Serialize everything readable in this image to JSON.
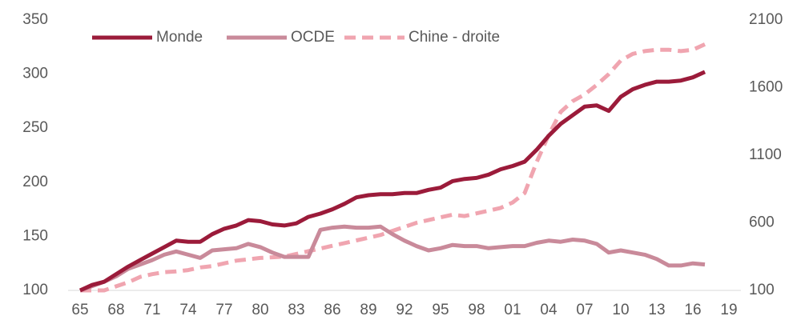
{
  "chart_data": {
    "type": "line",
    "categories": [
      "65",
      null,
      null,
      "68",
      null,
      null,
      "71",
      null,
      null,
      "74",
      null,
      null,
      "77",
      null,
      null,
      "80",
      null,
      null,
      "83",
      null,
      null,
      "86",
      null,
      null,
      "89",
      null,
      null,
      "92",
      null,
      null,
      "95",
      null,
      null,
      "98",
      null,
      null,
      "01",
      null,
      null,
      "04",
      null,
      null,
      "07",
      null,
      null,
      "10",
      null,
      null,
      "13",
      null,
      null,
      "16",
      null,
      null,
      "19"
    ],
    "series": [
      {
        "name": "Monde",
        "color": "#9b1b3a",
        "dashed": false,
        "axis": "y",
        "values": [
          100,
          105,
          108,
          115,
          122,
          128,
          134,
          140,
          146,
          145,
          145,
          152,
          157,
          160,
          165,
          164,
          161,
          160,
          162,
          168,
          171,
          175,
          180,
          186,
          188,
          189,
          189,
          190,
          190,
          193,
          195,
          201,
          203,
          204,
          207,
          212,
          215,
          219,
          230,
          243,
          254,
          262,
          270,
          271,
          266,
          279,
          286,
          290,
          293,
          293,
          294,
          297,
          302,
          null,
          null
        ]
      },
      {
        "name": "OCDE",
        "color": "#c98a9a",
        "dashed": false,
        "axis": "y",
        "values": [
          100,
          104,
          108,
          113,
          120,
          124,
          128,
          133,
          136,
          133,
          130,
          137,
          138,
          139,
          143,
          140,
          135,
          131,
          131,
          131,
          156,
          158,
          159,
          158,
          158,
          159,
          152,
          146,
          141,
          137,
          139,
          142,
          141,
          141,
          139,
          140,
          141,
          141,
          144,
          146,
          145,
          147,
          146,
          143,
          135,
          137,
          135,
          133,
          129,
          123,
          123,
          125,
          124,
          null,
          null
        ]
      },
      {
        "name": "Chine - droite",
        "color": "#f0a5b0",
        "dashed": true,
        "axis": "y2",
        "values": [
          100,
          100,
          100,
          130,
          160,
          200,
          220,
          235,
          240,
          250,
          270,
          280,
          300,
          320,
          330,
          340,
          345,
          350,
          370,
          390,
          410,
          430,
          450,
          470,
          490,
          510,
          540,
          570,
          600,
          620,
          640,
          660,
          650,
          670,
          690,
          710,
          750,
          820,
          1050,
          1250,
          1420,
          1500,
          1550,
          1620,
          1700,
          1800,
          1850,
          1870,
          1880,
          1880,
          1870,
          1880,
          1920,
          null,
          null
        ]
      }
    ],
    "ylim": [
      100,
      350
    ],
    "yticks": [
      100,
      150,
      200,
      250,
      300,
      350
    ],
    "y2lim": [
      100,
      2100
    ],
    "y2ticks": [
      100,
      600,
      1100,
      1600,
      2100
    ],
    "legend": "top"
  }
}
